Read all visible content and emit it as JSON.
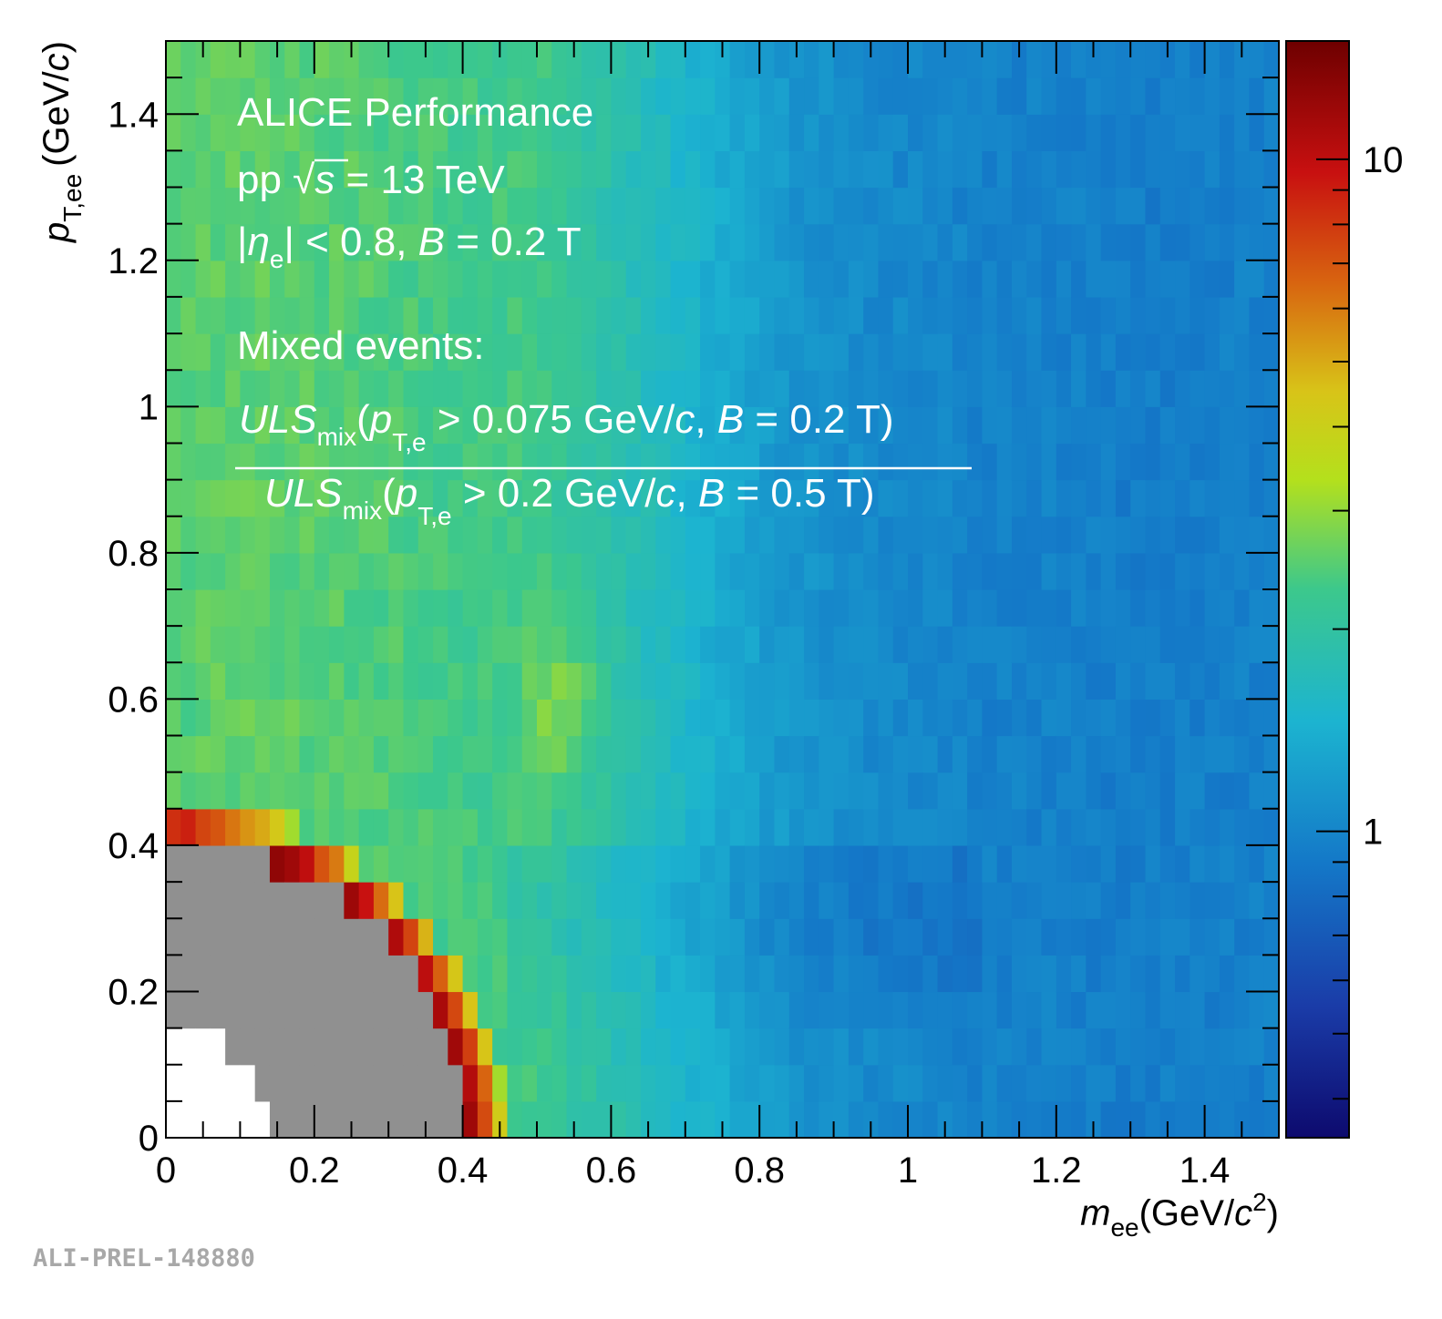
{
  "chart_data": {
    "type": "heatmap",
    "x_axis": {
      "range": [
        0,
        1.5
      ],
      "ticks": [
        0,
        0.2,
        0.4,
        0.6,
        0.8,
        1,
        1.2,
        1.4
      ],
      "tick_labels": [
        "0",
        "0.2",
        "0.4",
        "0.6",
        "0.8",
        "1",
        "1.2",
        "1.4"
      ],
      "label_main": "m",
      "label_sub": "ee",
      "label_unit_prefix": "(GeV/",
      "label_unit_c": "c",
      "label_unit_sup": "2",
      "label_unit_suffix": ")"
    },
    "y_axis": {
      "range": [
        0,
        1.5
      ],
      "ticks": [
        0,
        0.2,
        0.4,
        0.6,
        0.8,
        1,
        1.2,
        1.4
      ],
      "tick_labels": [
        "0",
        "0.2",
        "0.4",
        "0.6",
        "0.8",
        "1",
        "1.2",
        "1.4"
      ],
      "label_main": "p",
      "label_sub": "T,ee",
      "label_unit_prefix": "(GeV/",
      "label_unit_c": "c",
      "label_unit_suffix": ")"
    },
    "z_axis": {
      "scale": "log",
      "range": [
        0.35,
        15
      ],
      "ticks": [
        1,
        10
      ],
      "tick_labels": [
        "1",
        "10"
      ],
      "colormap": "rainbow"
    },
    "regions": [
      {
        "description": "empty (no entries)",
        "color": "#ffffff",
        "boundary_radius": 0.15
      },
      {
        "description": "masked",
        "color": "#909090",
        "boundary_radius": 0.4
      }
    ],
    "annotations": {
      "title": "ALICE Performance",
      "system_pre": "pp ",
      "system_sqrt": "√",
      "system_s": "s",
      "system_post": " = 13 TeV",
      "eta_pre": "|",
      "eta_sym": "η",
      "eta_sub": "e",
      "eta_post": "| < 0.8, ",
      "eta_B": "B",
      "eta_B_val": " = 0.2 T",
      "mixed": "Mixed events:",
      "num_uls": "ULS",
      "num_mix": "mix",
      "num_paren": "(",
      "num_p": "p",
      "num_sub": "T,e",
      "num_cut": " > 0.075 GeV/",
      "num_c": "c",
      "num_comma": ", ",
      "num_B": "B",
      "num_B_val": " = 0.2 T)",
      "den_uls": "ULS",
      "den_mix": "mix",
      "den_paren": "(",
      "den_p": "p",
      "den_sub": "T,e",
      "den_cut": " > 0.2 GeV/",
      "den_c": "c",
      "den_comma": ", ",
      "den_B": "B",
      "den_B_val": " = 0.5 T)"
    },
    "legend": "none",
    "grid": false
  },
  "watermark": "ALI-PREL-148880"
}
